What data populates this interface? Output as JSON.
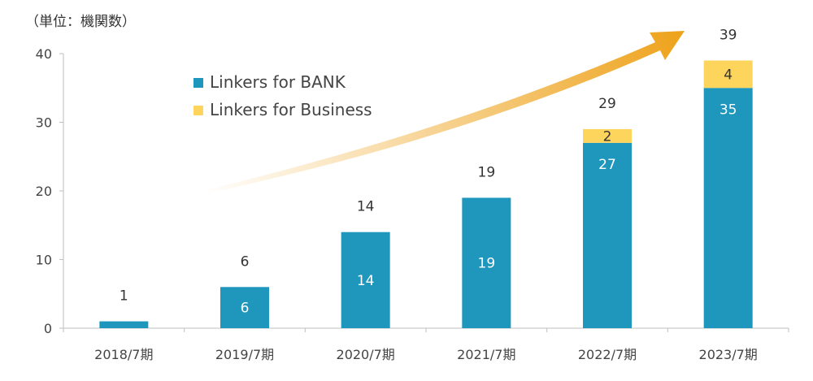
{
  "unit_label": "（単位：機関数）",
  "colors": {
    "bank": "#1f97bd",
    "business": "#fdd55c",
    "arrow": "#eea21a",
    "axis": "#bfbfbf"
  },
  "chart_data": {
    "type": "bar",
    "stacked": true,
    "categories": [
      "2018/7期",
      "2019/7期",
      "2020/7期",
      "2021/7期",
      "2022/7期",
      "2023/7期"
    ],
    "series": [
      {
        "name": "Linkers for BANK",
        "values": [
          1,
          6,
          14,
          19,
          27,
          35
        ]
      },
      {
        "name": "Linkers for Business",
        "values": [
          0,
          0,
          0,
          0,
          2,
          4
        ]
      }
    ],
    "totals": [
      1,
      6,
      14,
      19,
      29,
      39
    ],
    "ylim": [
      0,
      40
    ],
    "yticks": [
      0,
      10,
      20,
      30,
      40
    ],
    "legend": "top-left",
    "grid": false
  }
}
